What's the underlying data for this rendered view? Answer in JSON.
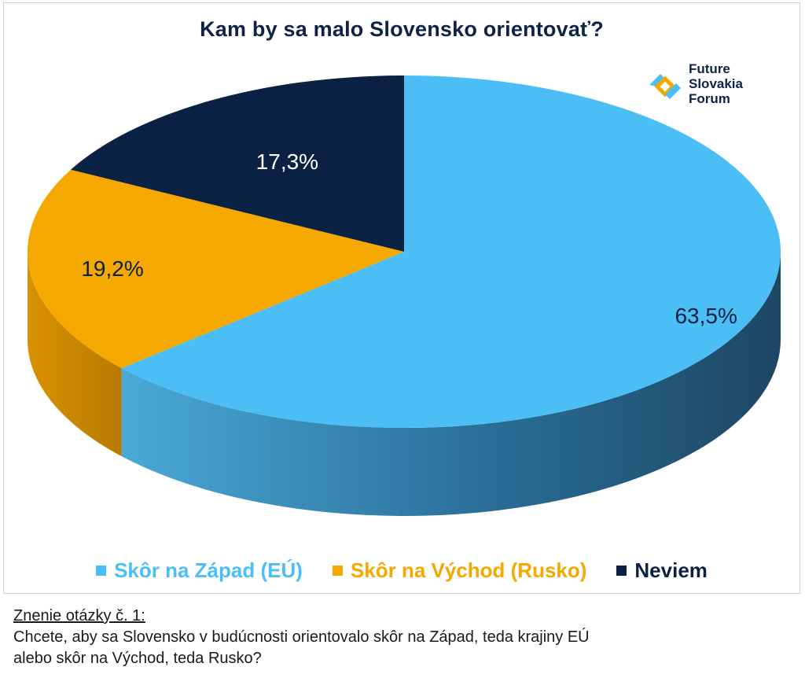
{
  "title": "Kam by sa malo Slovensko orientovať?",
  "logo": {
    "line1": "Future",
    "line2": "Slovakia",
    "line3": "Forum"
  },
  "chart_data": {
    "type": "pie",
    "title": "Kam by sa malo Slovensko orientovať?",
    "categories": [
      "Skôr na Západ (EÚ)",
      "Skôr na Východ (Rusko)",
      "Neviem"
    ],
    "values": [
      63.5,
      19.2,
      17.3
    ],
    "labels": [
      "63,5%",
      "19,2%",
      "17,3%"
    ],
    "colors": [
      "#4bbff5",
      "#f5a800",
      "#0b2143"
    ],
    "legend_position": "bottom",
    "style": "3d"
  },
  "legend": [
    {
      "label": "Skôr na Západ (EÚ)",
      "color": "#4bbff5"
    },
    {
      "label": "Skôr na Východ (Rusko)",
      "color": "#f5a800"
    },
    {
      "label": "Neviem",
      "color": "#0b2143"
    }
  ],
  "note": {
    "heading": "Znenie otázky č. 1:",
    "line1": "Chcete, aby sa Slovensko v budúcnosti orientovalo skôr na Západ, teda krajiny EÚ",
    "line2": "alebo skôr na Východ, teda Rusko?"
  }
}
